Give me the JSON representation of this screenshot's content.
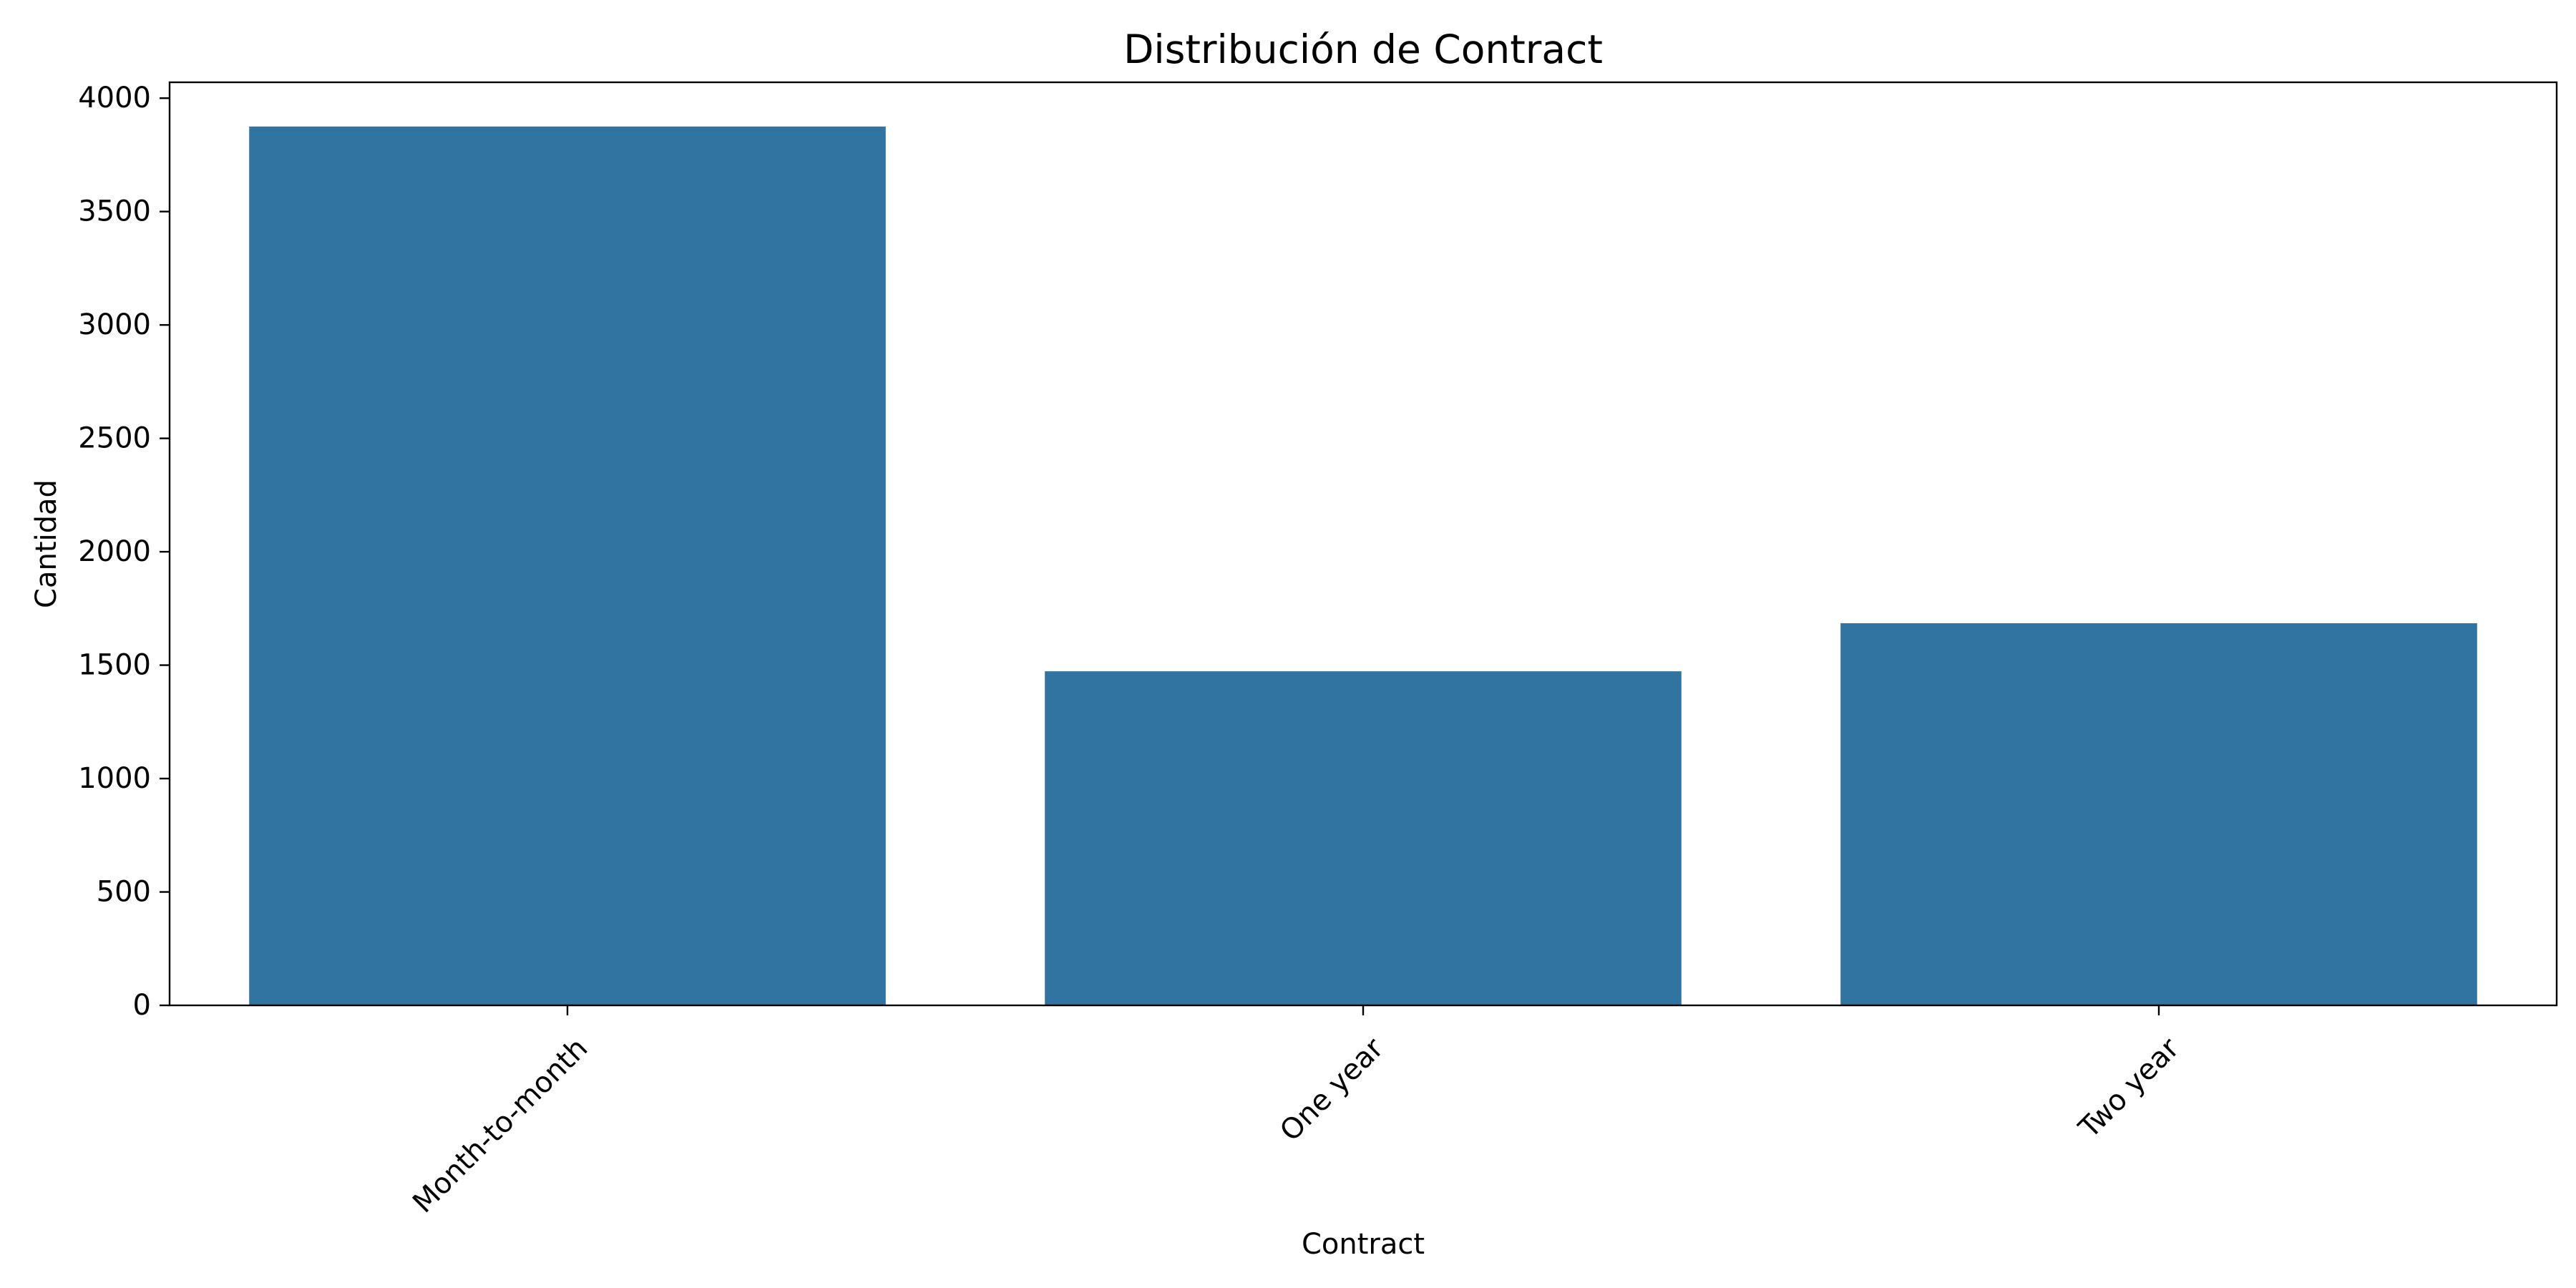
{
  "chart_data": {
    "type": "bar",
    "title": "Distribución de Contract",
    "xlabel": "Contract",
    "ylabel": "Cantidad",
    "categories": [
      "Month-to-month",
      "One year",
      "Two year"
    ],
    "values": [
      3875,
      1473,
      1685
    ],
    "ylim": [
      0,
      4070
    ],
    "yticks": [
      0,
      500,
      1000,
      1500,
      2000,
      2500,
      3000,
      3500,
      4000
    ],
    "grid": false,
    "legend": "none",
    "bar_color": "#3274a1",
    "x_tick_rotation_deg": 45
  }
}
